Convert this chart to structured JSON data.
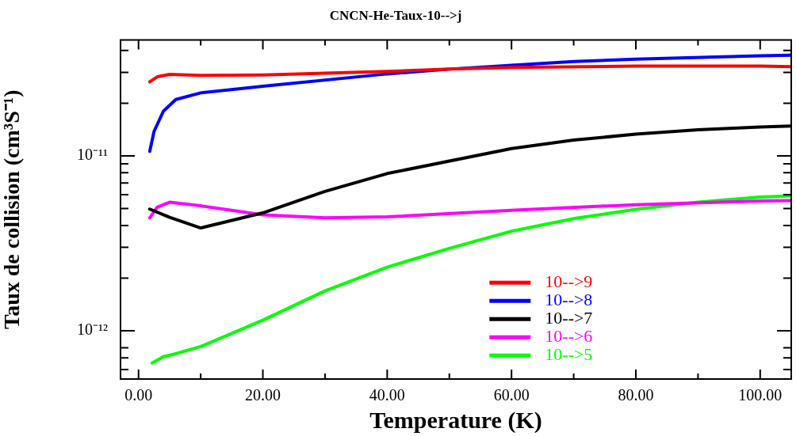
{
  "chart_data": {
    "type": "line",
    "title": "CNCN-He-Taux-10-->j",
    "xlabel": "Temperature (K)",
    "ylabel": "Taux de collision (cm³S⁻¹)",
    "log": "y",
    "xlim": [
      -2.9,
      105
    ],
    "ylim": [
      5.3e-13,
      4.6e-11
    ],
    "legend": "bottom right",
    "marker": "none",
    "line_style": "solid",
    "xticks": [
      {
        "value": 0,
        "label": "0.00"
      },
      {
        "value": 10,
        "label": null
      },
      {
        "value": 20,
        "label": "20.00"
      },
      {
        "value": 30,
        "label": null
      },
      {
        "value": 40,
        "label": "40.00"
      },
      {
        "value": 50,
        "label": null
      },
      {
        "value": 60,
        "label": "60.00"
      },
      {
        "value": 70,
        "label": null
      },
      {
        "value": 80,
        "label": "80.00"
      },
      {
        "value": 90,
        "label": null
      },
      {
        "value": 100,
        "label": "100.00"
      }
    ],
    "yticks": [
      {
        "value": 6e-13,
        "label": null
      },
      {
        "value": 7e-13,
        "label": null
      },
      {
        "value": 8e-13,
        "label": null
      },
      {
        "value": 1e-12,
        "label": "10⁻¹²"
      },
      {
        "value": 2e-12,
        "label": null
      },
      {
        "value": 3e-12,
        "label": null
      },
      {
        "value": 4e-12,
        "label": null
      },
      {
        "value": 5e-12,
        "label": null
      },
      {
        "value": 6e-12,
        "label": null
      },
      {
        "value": 7e-12,
        "label": null
      },
      {
        "value": 8e-12,
        "label": null
      },
      {
        "value": 9e-12,
        "label": null
      },
      {
        "value": 1e-11,
        "label": "10⁻¹¹"
      },
      {
        "value": 2e-11,
        "label": null
      },
      {
        "value": 3e-11,
        "label": null
      },
      {
        "value": 4e-11,
        "label": null
      }
    ],
    "series": [
      {
        "name": "10-->9",
        "color": "#ff0000",
        "x": [
          1.8,
          3,
          5,
          10,
          20,
          40,
          50,
          60,
          80,
          100,
          105
        ],
        "values": [
          2.65e-11,
          2.83e-11,
          2.92e-11,
          2.88e-11,
          2.9e-11,
          3.04e-11,
          3.13e-11,
          3.2e-11,
          3.26e-11,
          3.26e-11,
          3.23e-11
        ]
      },
      {
        "name": "10-->8",
        "color": "#0000ff",
        "x": [
          1.8,
          2.5,
          4,
          6,
          10,
          20,
          40,
          50,
          60,
          70,
          80,
          100,
          105
        ],
        "values": [
          1.06e-11,
          1.38e-11,
          1.8e-11,
          2.1e-11,
          2.29e-11,
          2.5e-11,
          2.94e-11,
          3.13e-11,
          3.29e-11,
          3.46e-11,
          3.57e-11,
          3.73e-11,
          3.76e-11
        ]
      },
      {
        "name": "10-->7",
        "color": "#000000",
        "x": [
          1.8,
          5,
          10,
          20,
          30,
          40,
          60,
          70,
          80,
          90,
          100,
          105
        ],
        "values": [
          4.96e-12,
          4.45e-12,
          3.87e-12,
          4.72e-12,
          6.26e-12,
          7.92e-12,
          1.1e-11,
          1.23e-11,
          1.33e-11,
          1.41e-11,
          1.46e-11,
          1.48e-11
        ]
      },
      {
        "name": "10-->6",
        "color": "#ff00ff",
        "x": [
          1.8,
          3,
          5,
          10,
          20,
          30,
          40,
          60,
          80,
          100,
          105
        ],
        "values": [
          4.42e-12,
          5.08e-12,
          5.43e-12,
          5.18e-12,
          4.6e-12,
          4.42e-12,
          4.48e-12,
          4.89e-12,
          5.26e-12,
          5.52e-12,
          5.55e-12
        ]
      },
      {
        "name": "10-->5",
        "color": "#00ff00",
        "x": [
          2.2,
          4,
          6,
          10,
          20,
          30,
          40,
          50,
          60,
          70,
          80,
          90,
          100,
          105
        ],
        "values": [
          6.55e-13,
          7.11e-13,
          7.4e-13,
          8.13e-13,
          1.15e-12,
          1.69e-12,
          2.31e-12,
          2.96e-12,
          3.71e-12,
          4.38e-12,
          4.95e-12,
          5.43e-12,
          5.81e-12,
          5.9e-12
        ]
      }
    ]
  }
}
